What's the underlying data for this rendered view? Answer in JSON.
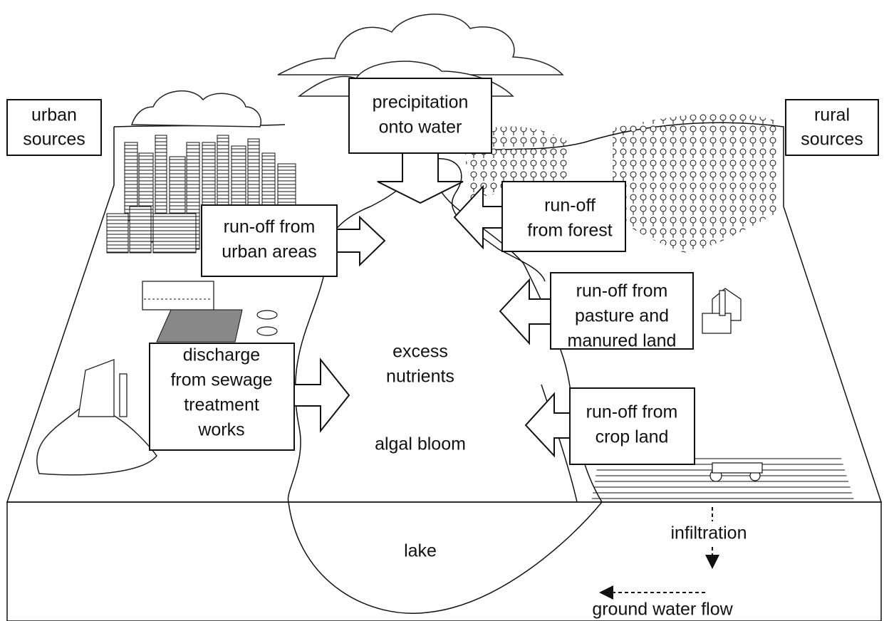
{
  "regions": [
    {
      "label": [
        "urban",
        "sources"
      ]
    },
    {
      "label": [
        "rural",
        "sources"
      ]
    }
  ],
  "inputs": [
    {
      "label": [
        "precipitation",
        "onto water"
      ]
    },
    {
      "label": [
        "run-off from",
        "urban areas"
      ]
    },
    {
      "label": [
        "run-off",
        "from forest"
      ]
    },
    {
      "label": [
        "run-off from",
        "pasture and",
        "manured land"
      ]
    },
    {
      "label": [
        "discharge",
        "from sewage",
        "treatment",
        "works"
      ]
    },
    {
      "label": [
        "run-off from",
        "crop land"
      ]
    }
  ],
  "labels": {
    "nutrients": [
      "excess",
      "nutrients"
    ],
    "bloom": "algal bloom",
    "lake": "lake",
    "infiltration": "infiltration",
    "groundwater": "ground water flow"
  }
}
